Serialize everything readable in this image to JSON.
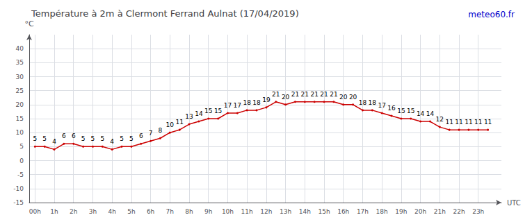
{
  "chart_data": {
    "type": "line",
    "title": "Température à 2m à Clermont Ferrand Aulnat (17/04/2019)",
    "xlabel": "UTC",
    "ylabel": "°C",
    "annotations": [
      {
        "text": "meteo60.fr",
        "color": "#0000cc"
      }
    ],
    "x": [
      0.0,
      0.5,
      1.0,
      1.5,
      2.0,
      2.5,
      3.0,
      3.5,
      4.0,
      4.5,
      5.0,
      5.5,
      6.0,
      6.5,
      7.0,
      7.5,
      8.0,
      8.5,
      9.0,
      9.5,
      10.0,
      10.5,
      11.0,
      11.5,
      12.0,
      12.5,
      13.0,
      13.5,
      14.0,
      14.5,
      15.0,
      15.5,
      16.0,
      16.5,
      17.0,
      17.5,
      18.0,
      18.5,
      19.0,
      19.5,
      20.0,
      20.5,
      21.0,
      21.5,
      22.0,
      22.5,
      23.0,
      23.5
    ],
    "values": [
      5,
      5,
      4,
      6,
      6,
      5,
      5,
      5,
      4,
      5,
      5,
      6,
      7,
      8,
      10,
      11,
      13,
      14,
      15,
      15,
      17,
      17,
      18,
      18,
      19,
      21,
      20,
      21,
      21,
      21,
      21,
      21,
      20,
      20,
      18,
      18,
      17,
      16,
      15,
      15,
      14,
      14,
      12,
      11,
      11,
      11,
      11,
      11
    ],
    "color": "#cc0000",
    "xlim": [
      -0.3,
      24.2
    ],
    "xticks": [
      {
        "value": 0,
        "label": "00h"
      },
      {
        "value": 1,
        "label": "1h"
      },
      {
        "value": 2,
        "label": "2h"
      },
      {
        "value": 3,
        "label": "3h"
      },
      {
        "value": 4,
        "label": "4h"
      },
      {
        "value": 5,
        "label": "5h"
      },
      {
        "value": 6,
        "label": "6h"
      },
      {
        "value": 7,
        "label": "7h"
      },
      {
        "value": 8,
        "label": "8h"
      },
      {
        "value": 9,
        "label": "9h"
      },
      {
        "value": 10,
        "label": "10h"
      },
      {
        "value": 11,
        "label": "11h"
      },
      {
        "value": 12,
        "label": "12h"
      },
      {
        "value": 13,
        "label": "13h"
      },
      {
        "value": 14,
        "label": "14h"
      },
      {
        "value": 15,
        "label": "15h"
      },
      {
        "value": 16,
        "label": "16h"
      },
      {
        "value": 17,
        "label": "17h"
      },
      {
        "value": 18,
        "label": "18h"
      },
      {
        "value": 19,
        "label": "19h"
      },
      {
        "value": 20,
        "label": "20h"
      },
      {
        "value": 21,
        "label": "21h"
      },
      {
        "value": 22,
        "label": "22h"
      },
      {
        "value": 23,
        "label": "23h"
      }
    ],
    "ylim": [
      -15,
      45
    ],
    "yticks": [
      -15,
      -10,
      -5,
      0,
      5,
      10,
      15,
      20,
      25,
      30,
      35,
      40
    ],
    "grid": true,
    "data_labels": true
  }
}
